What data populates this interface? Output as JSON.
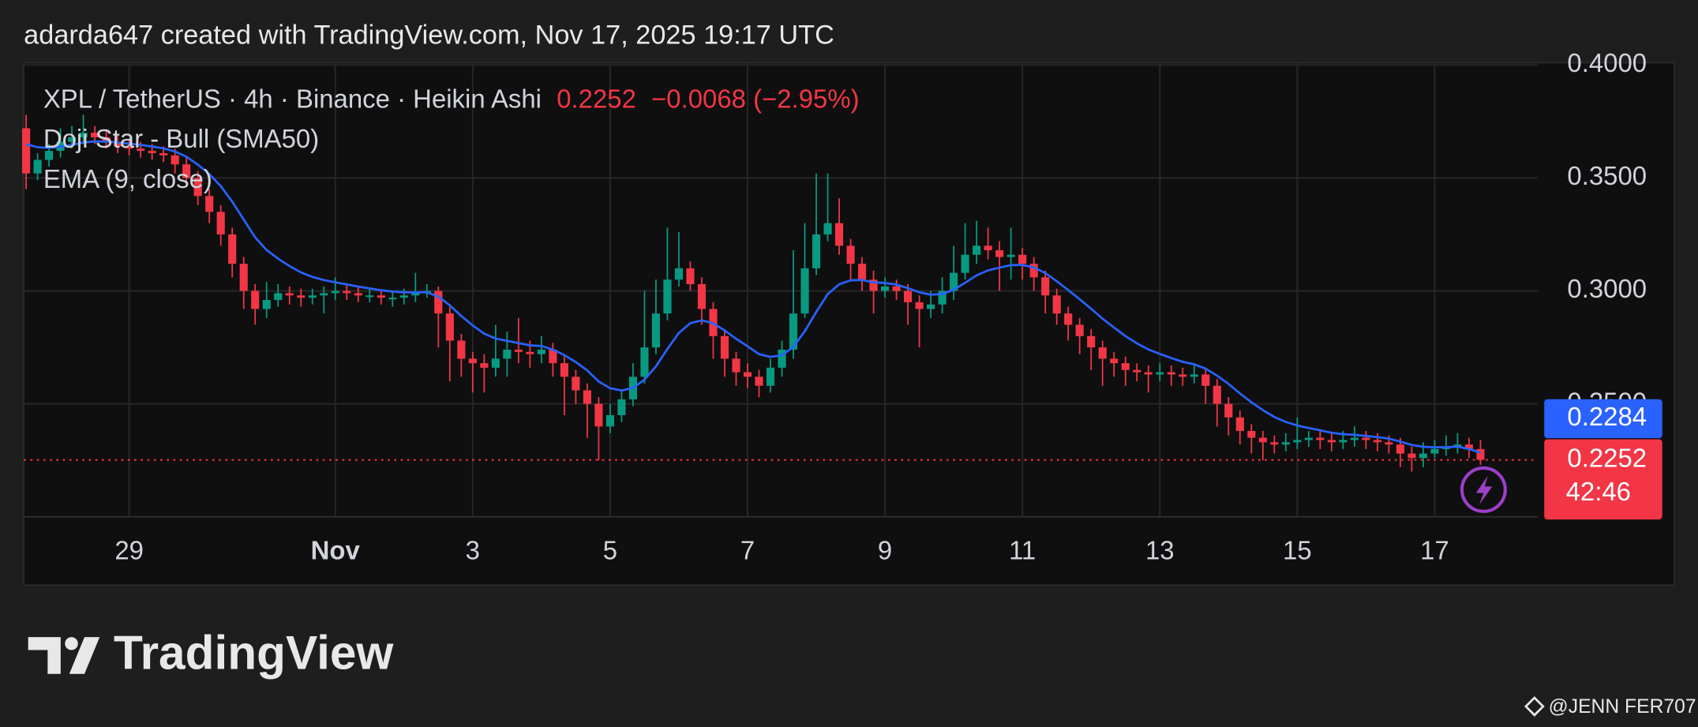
{
  "header": {
    "credit": "adarda647 created with TradingView.com, Nov 17, 2025 19:17 UTC"
  },
  "chart_data": {
    "type": "candlestick",
    "title": "XPL / TetherUS · 4h · Binance · Heikin Ashi",
    "change": "−0.0068 (−2.95%)",
    "indicator": "Doji Star - Bull (SMA50)",
    "countdown": "42:46",
    "up_color": "#089981",
    "down_color": "#f23645",
    "open": [
      0.372,
      0.352,
      0.358,
      0.362,
      0.366,
      0.368,
      0.37,
      0.368,
      0.366,
      0.364,
      0.363,
      0.362,
      0.361,
      0.36,
      0.356,
      0.35,
      0.342,
      0.335,
      0.325,
      0.312,
      0.3,
      0.292,
      0.296,
      0.299,
      0.298,
      0.297,
      0.298,
      0.299,
      0.3,
      0.299,
      0.298,
      0.298,
      0.297,
      0.297,
      0.298,
      0.299,
      0.3,
      0.29,
      0.278,
      0.27,
      0.268,
      0.266,
      0.27,
      0.274,
      0.273,
      0.272,
      0.274,
      0.268,
      0.262,
      0.256,
      0.25,
      0.24,
      0.245,
      0.252,
      0.262,
      0.275,
      0.29,
      0.305,
      0.31,
      0.303,
      0.292,
      0.28,
      0.27,
      0.264,
      0.262,
      0.258,
      0.266,
      0.274,
      0.29,
      0.31,
      0.325,
      0.33,
      0.32,
      0.312,
      0.305,
      0.3,
      0.302,
      0.3,
      0.295,
      0.292,
      0.294,
      0.3,
      0.308,
      0.316,
      0.32,
      0.318,
      0.315,
      0.316,
      0.312,
      0.306,
      0.298,
      0.29,
      0.285,
      0.28,
      0.275,
      0.27,
      0.268,
      0.265,
      0.264,
      0.263,
      0.264,
      0.263,
      0.262,
      0.263,
      0.258,
      0.25,
      0.244,
      0.238,
      0.235,
      0.233,
      0.232,
      0.233,
      0.234,
      0.235,
      0.234,
      0.233,
      0.234,
      0.235,
      0.234,
      0.233,
      0.232,
      0.228,
      0.226,
      0.228,
      0.23,
      0.231,
      0.232,
      0.23
    ],
    "high": [
      0.378,
      0.361,
      0.365,
      0.372,
      0.373,
      0.378,
      0.373,
      0.371,
      0.369,
      0.367,
      0.366,
      0.365,
      0.364,
      0.363,
      0.359,
      0.353,
      0.345,
      0.338,
      0.328,
      0.315,
      0.303,
      0.304,
      0.303,
      0.302,
      0.301,
      0.301,
      0.302,
      0.306,
      0.303,
      0.302,
      0.301,
      0.3,
      0.3,
      0.301,
      0.308,
      0.303,
      0.302,
      0.293,
      0.281,
      0.273,
      0.272,
      0.285,
      0.282,
      0.288,
      0.278,
      0.28,
      0.277,
      0.271,
      0.265,
      0.259,
      0.253,
      0.25,
      0.256,
      0.268,
      0.3,
      0.305,
      0.328,
      0.326,
      0.313,
      0.306,
      0.295,
      0.283,
      0.273,
      0.268,
      0.265,
      0.27,
      0.278,
      0.318,
      0.33,
      0.352,
      0.352,
      0.341,
      0.323,
      0.315,
      0.309,
      0.306,
      0.305,
      0.303,
      0.298,
      0.3,
      0.306,
      0.32,
      0.33,
      0.331,
      0.328,
      0.322,
      0.328,
      0.319,
      0.315,
      0.309,
      0.301,
      0.293,
      0.288,
      0.283,
      0.278,
      0.273,
      0.271,
      0.268,
      0.267,
      0.268,
      0.267,
      0.266,
      0.268,
      0.266,
      0.261,
      0.253,
      0.247,
      0.241,
      0.238,
      0.236,
      0.237,
      0.244,
      0.238,
      0.238,
      0.237,
      0.238,
      0.24,
      0.238,
      0.237,
      0.236,
      0.235,
      0.231,
      0.233,
      0.234,
      0.236,
      0.237,
      0.235,
      0.234
    ],
    "low": [
      0.345,
      0.349,
      0.355,
      0.359,
      0.363,
      0.365,
      0.365,
      0.363,
      0.361,
      0.36,
      0.359,
      0.358,
      0.357,
      0.352,
      0.346,
      0.338,
      0.33,
      0.32,
      0.306,
      0.292,
      0.285,
      0.288,
      0.293,
      0.294,
      0.293,
      0.294,
      0.29,
      0.296,
      0.296,
      0.295,
      0.295,
      0.294,
      0.293,
      0.294,
      0.295,
      0.297,
      0.275,
      0.26,
      0.262,
      0.255,
      0.255,
      0.262,
      0.262,
      0.268,
      0.266,
      0.268,
      0.262,
      0.245,
      0.25,
      0.235,
      0.225,
      0.237,
      0.242,
      0.249,
      0.259,
      0.272,
      0.287,
      0.302,
      0.3,
      0.285,
      0.27,
      0.262,
      0.258,
      0.257,
      0.253,
      0.255,
      0.262,
      0.27,
      0.288,
      0.307,
      0.322,
      0.316,
      0.305,
      0.3,
      0.29,
      0.297,
      0.296,
      0.285,
      0.275,
      0.288,
      0.29,
      0.296,
      0.305,
      0.312,
      0.314,
      0.3,
      0.305,
      0.305,
      0.3,
      0.29,
      0.285,
      0.278,
      0.272,
      0.265,
      0.258,
      0.262,
      0.258,
      0.26,
      0.255,
      0.26,
      0.258,
      0.258,
      0.259,
      0.25,
      0.24,
      0.236,
      0.232,
      0.228,
      0.225,
      0.228,
      0.229,
      0.23,
      0.231,
      0.23,
      0.229,
      0.23,
      0.231,
      0.23,
      0.229,
      0.228,
      0.222,
      0.22,
      0.222,
      0.226,
      0.227,
      0.228,
      0.226,
      0.223
    ],
    "close": [
      0.352,
      0.358,
      0.362,
      0.366,
      0.368,
      0.37,
      0.368,
      0.366,
      0.364,
      0.363,
      0.362,
      0.361,
      0.36,
      0.356,
      0.35,
      0.342,
      0.335,
      0.325,
      0.312,
      0.3,
      0.292,
      0.296,
      0.299,
      0.298,
      0.297,
      0.298,
      0.299,
      0.3,
      0.299,
      0.298,
      0.298,
      0.297,
      0.297,
      0.298,
      0.299,
      0.3,
      0.29,
      0.278,
      0.27,
      0.268,
      0.266,
      0.27,
      0.274,
      0.273,
      0.272,
      0.274,
      0.268,
      0.262,
      0.256,
      0.25,
      0.24,
      0.245,
      0.252,
      0.262,
      0.275,
      0.29,
      0.305,
      0.31,
      0.303,
      0.292,
      0.28,
      0.27,
      0.264,
      0.262,
      0.258,
      0.266,
      0.274,
      0.29,
      0.31,
      0.325,
      0.33,
      0.32,
      0.312,
      0.305,
      0.3,
      0.302,
      0.3,
      0.295,
      0.292,
      0.294,
      0.3,
      0.308,
      0.316,
      0.32,
      0.318,
      0.315,
      0.316,
      0.312,
      0.306,
      0.298,
      0.29,
      0.285,
      0.28,
      0.275,
      0.27,
      0.268,
      0.265,
      0.264,
      0.263,
      0.264,
      0.263,
      0.262,
      0.263,
      0.258,
      0.25,
      0.244,
      0.238,
      0.235,
      0.233,
      0.232,
      0.233,
      0.234,
      0.235,
      0.234,
      0.233,
      0.234,
      0.235,
      0.234,
      0.233,
      0.232,
      0.228,
      0.226,
      0.228,
      0.23,
      0.231,
      0.232,
      0.23,
      0.2252
    ],
    "series": [
      {
        "name": "EMA (9, close)",
        "color": "#2962ff",
        "values": [
          0.365,
          0.3636,
          0.3633,
          0.3638,
          0.3646,
          0.3657,
          0.3662,
          0.3661,
          0.3657,
          0.3652,
          0.3646,
          0.3639,
          0.3631,
          0.3617,
          0.3594,
          0.3559,
          0.3517,
          0.3464,
          0.3395,
          0.3316,
          0.3237,
          0.3181,
          0.3143,
          0.311,
          0.3082,
          0.3062,
          0.3048,
          0.3038,
          0.3029,
          0.3019,
          0.3011,
          0.3003,
          0.2997,
          0.2994,
          0.2993,
          0.2994,
          0.2975,
          0.2936,
          0.2889,
          0.2847,
          0.2811,
          0.2789,
          0.2779,
          0.2769,
          0.2759,
          0.2756,
          0.274,
          0.2716,
          0.2685,
          0.2648,
          0.2599,
          0.2569,
          0.2559,
          0.2571,
          0.2607,
          0.2666,
          0.2743,
          0.2814,
          0.2857,
          0.287,
          0.2856,
          0.2825,
          0.2788,
          0.2755,
          0.272,
          0.2708,
          0.2715,
          0.2752,
          0.2822,
          0.2907,
          0.2986,
          0.3029,
          0.3047,
          0.3048,
          0.3038,
          0.3035,
          0.3028,
          0.3012,
          0.2994,
          0.2983,
          0.2986,
          0.3005,
          0.3036,
          0.3069,
          0.3091,
          0.3103,
          0.3114,
          0.3115,
          0.3104,
          0.3079,
          0.3043,
          0.3004,
          0.2963,
          0.2921,
          0.2877,
          0.2838,
          0.28,
          0.2768,
          0.2741,
          0.2721,
          0.2703,
          0.2686,
          0.2675,
          0.2656,
          0.2625,
          0.2588,
          0.2546,
          0.2507,
          0.2472,
          0.2442,
          0.242,
          0.2404,
          0.2393,
          0.2383,
          0.2372,
          0.2366,
          0.2363,
          0.2358,
          0.2353,
          0.2346,
          0.2333,
          0.2318,
          0.231,
          0.2308,
          0.2308,
          0.2311,
          0.23,
          0.2284
        ]
      }
    ],
    "xlim": [
      -0.2,
      132
    ],
    "xticks": [
      {
        "value": 9,
        "label": "29"
      },
      {
        "value": 27,
        "label": "Nov"
      },
      {
        "value": 39,
        "label": "3"
      },
      {
        "value": 51,
        "label": "5"
      },
      {
        "value": 63,
        "label": "7"
      },
      {
        "value": 75,
        "label": "9"
      },
      {
        "value": 87,
        "label": "11"
      },
      {
        "value": 99,
        "label": "13"
      },
      {
        "value": 111,
        "label": "15"
      },
      {
        "value": 123,
        "label": "17"
      }
    ],
    "ylim": [
      0.2,
      0.4
    ],
    "yticks": [
      {
        "value": 0.25,
        "label": "0.2500"
      },
      {
        "value": 0.3,
        "label": "0.3000"
      },
      {
        "value": 0.35,
        "label": "0.3500"
      },
      {
        "value": 0.4,
        "label": "0.4000"
      }
    ],
    "grid": true
  },
  "footer": {
    "logo": "TradingView",
    "watermark": "@JENN FER707"
  }
}
